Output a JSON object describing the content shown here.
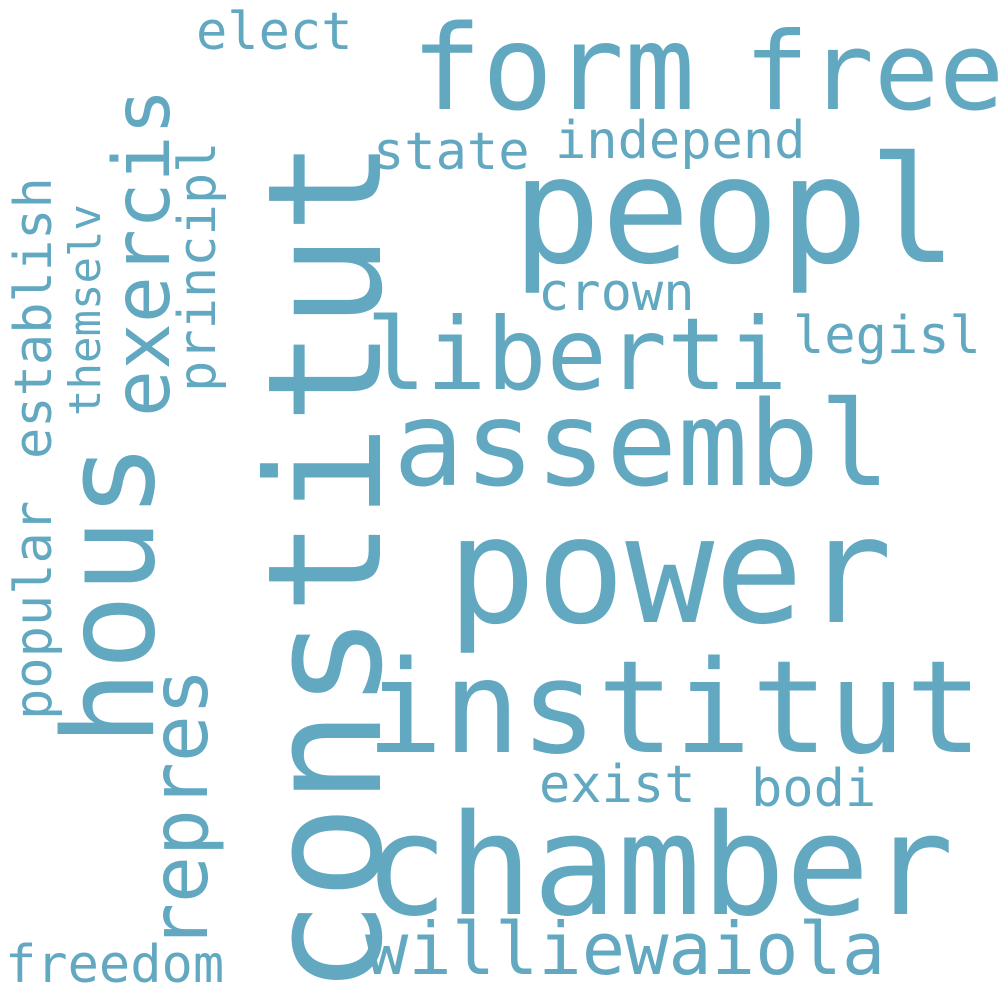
{
  "word_color": "#62a8c1",
  "background_color": "#ffffff",
  "words": [
    {
      "id": "constitut",
      "text": "constitut"
    },
    {
      "id": "hous",
      "text": "hous"
    },
    {
      "id": "peopl",
      "text": "peopl"
    },
    {
      "id": "power",
      "text": "power"
    },
    {
      "id": "chamber",
      "text": "chamber"
    },
    {
      "id": "institut",
      "text": "institut"
    },
    {
      "id": "assembl",
      "text": "assembl"
    },
    {
      "id": "form",
      "text": "form"
    },
    {
      "id": "free",
      "text": "free"
    },
    {
      "id": "liberti",
      "text": "liberti"
    },
    {
      "id": "williewaiola",
      "text": "williewaiola"
    },
    {
      "id": "exercis",
      "text": "exercis"
    },
    {
      "id": "repres",
      "text": "repres"
    },
    {
      "id": "elect",
      "text": "elect"
    },
    {
      "id": "state",
      "text": "state"
    },
    {
      "id": "independ",
      "text": "independ"
    },
    {
      "id": "crown",
      "text": "crown"
    },
    {
      "id": "legisl",
      "text": "legisl"
    },
    {
      "id": "exist",
      "text": "exist"
    },
    {
      "id": "bodi",
      "text": "bodi"
    },
    {
      "id": "freedom",
      "text": "freedom"
    },
    {
      "id": "principl",
      "text": "principl"
    },
    {
      "id": "themselv",
      "text": "themselv"
    },
    {
      "id": "establish",
      "text": "establish"
    },
    {
      "id": "popular",
      "text": "popular"
    }
  ]
}
